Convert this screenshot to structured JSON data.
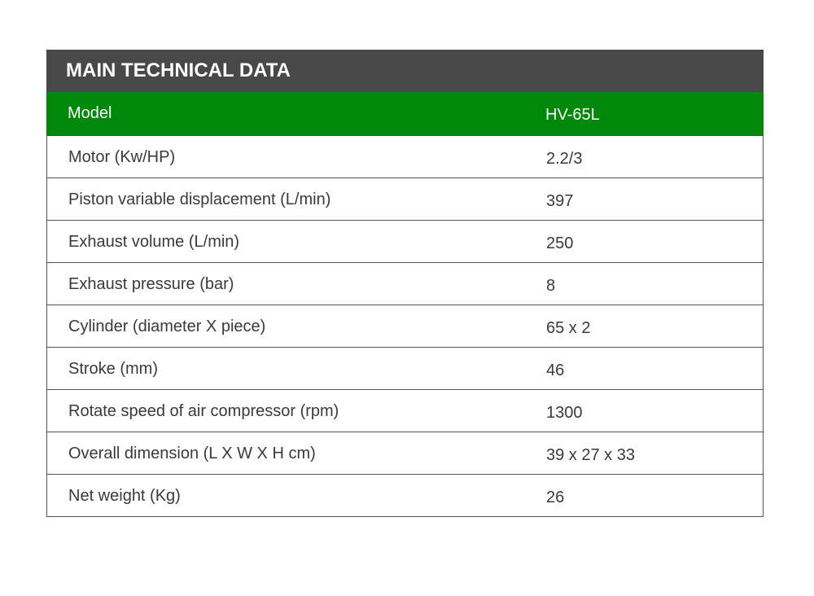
{
  "table": {
    "title": "MAIN TECHNICAL DATA",
    "header": {
      "label": "Model",
      "value": "HV-65L"
    },
    "rows": [
      {
        "label": "Motor (Kw/HP)",
        "value": "2.2/3"
      },
      {
        "label": "Piston variable displacement (L/min)",
        "value": "397"
      },
      {
        "label": "Exhaust volume (L/min)",
        "value": "250"
      },
      {
        "label": "Exhaust pressure (bar)",
        "value": "8"
      },
      {
        "label": "Cylinder (diameter X piece)",
        "value": "65 x 2"
      },
      {
        "label": "Stroke (mm)",
        "value": "46"
      },
      {
        "label": "Rotate speed of air compressor (rpm)",
        "value": "1300"
      },
      {
        "label": "Overall dimension (L X W X H cm)",
        "value": "39 x 27 x 33"
      },
      {
        "label": "Net weight (Kg)",
        "value": "26"
      }
    ]
  },
  "colors": {
    "title_bar": "#484848",
    "header_row": "#00880a",
    "border": "#555555",
    "text": "#3a3a3a"
  }
}
